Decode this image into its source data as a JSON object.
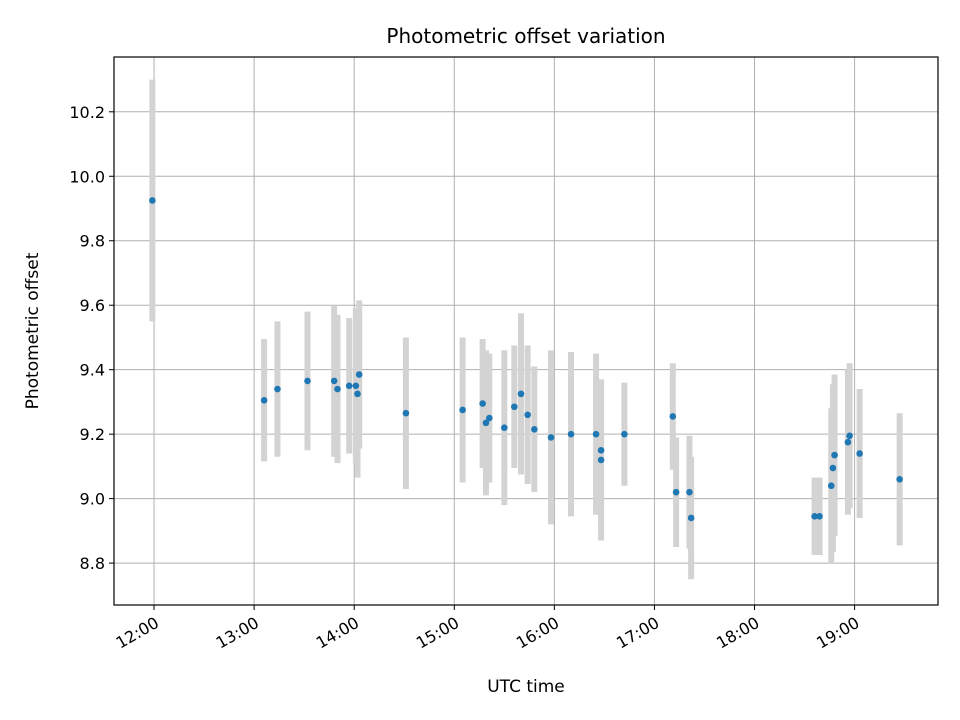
{
  "chart_data": {
    "type": "scatter",
    "title": "Photometric offset variation",
    "xlabel": "UTC time",
    "ylabel": "Photometric offset",
    "xlim": [
      "11:36",
      "19:50"
    ],
    "ylim": [
      8.67,
      10.37
    ],
    "grid": true,
    "x_ticks": [
      "12:00",
      "13:00",
      "14:00",
      "15:00",
      "16:00",
      "17:00",
      "18:00",
      "19:00"
    ],
    "y_ticks": [
      8.8,
      9.0,
      9.2,
      9.4,
      9.6,
      9.8,
      10.0,
      10.2
    ],
    "y_tick_labels": [
      "8.8",
      "9.0",
      "9.2",
      "9.4",
      "9.6",
      "9.8",
      "10.0",
      "10.2"
    ],
    "colors": {
      "point": "#1f77b4",
      "errorbar": "#d3d3d3",
      "grid": "#b0b0b0"
    },
    "points": [
      {
        "x": "11:59",
        "y": 9.925,
        "err": 0.375
      },
      {
        "x": "13:06",
        "y": 9.305,
        "err": 0.19
      },
      {
        "x": "13:14",
        "y": 9.34,
        "err": 0.21
      },
      {
        "x": "13:32",
        "y": 9.365,
        "err": 0.215
      },
      {
        "x": "13:48",
        "y": 9.365,
        "err": 0.235
      },
      {
        "x": "13:50",
        "y": 9.34,
        "err": 0.23
      },
      {
        "x": "13:57",
        "y": 9.35,
        "err": 0.21
      },
      {
        "x": "14:01",
        "y": 9.35,
        "err": 0.24
      },
      {
        "x": "14:03",
        "y": 9.385,
        "err": 0.23
      },
      {
        "x": "14:02",
        "y": 9.325,
        "err": 0.26
      },
      {
        "x": "14:31",
        "y": 9.265,
        "err": 0.235
      },
      {
        "x": "15:05",
        "y": 9.275,
        "err": 0.225
      },
      {
        "x": "15:17",
        "y": 9.295,
        "err": 0.2
      },
      {
        "x": "15:19",
        "y": 9.235,
        "err": 0.225
      },
      {
        "x": "15:21",
        "y": 9.25,
        "err": 0.2
      },
      {
        "x": "15:30",
        "y": 9.22,
        "err": 0.24
      },
      {
        "x": "15:36",
        "y": 9.285,
        "err": 0.19
      },
      {
        "x": "15:40",
        "y": 9.325,
        "err": 0.25
      },
      {
        "x": "15:44",
        "y": 9.26,
        "err": 0.215
      },
      {
        "x": "15:48",
        "y": 9.215,
        "err": 0.195
      },
      {
        "x": "15:58",
        "y": 9.19,
        "err": 0.27
      },
      {
        "x": "16:10",
        "y": 9.2,
        "err": 0.255
      },
      {
        "x": "16:25",
        "y": 9.2,
        "err": 0.25
      },
      {
        "x": "16:28",
        "y": 9.15,
        "err": 0.22
      },
      {
        "x": "16:28",
        "y": 9.12,
        "err": 0.25
      },
      {
        "x": "16:42",
        "y": 9.2,
        "err": 0.16
      },
      {
        "x": "17:11",
        "y": 9.255,
        "err": 0.165
      },
      {
        "x": "17:13",
        "y": 9.02,
        "err": 0.17
      },
      {
        "x": "17:21",
        "y": 9.02,
        "err": 0.175
      },
      {
        "x": "17:22",
        "y": 8.94,
        "err": 0.19
      },
      {
        "x": "18:36",
        "y": 8.945,
        "err": 0.12
      },
      {
        "x": "18:39",
        "y": 8.945,
        "err": 0.12
      },
      {
        "x": "18:46",
        "y": 9.04,
        "err": 0.24
      },
      {
        "x": "18:47",
        "y": 9.095,
        "err": 0.26
      },
      {
        "x": "18:48",
        "y": 9.135,
        "err": 0.25
      },
      {
        "x": "18:56",
        "y": 9.175,
        "err": 0.225
      },
      {
        "x": "18:57",
        "y": 9.195,
        "err": 0.225
      },
      {
        "x": "19:03",
        "y": 9.14,
        "err": 0.2
      },
      {
        "x": "19:27",
        "y": 9.06,
        "err": 0.205
      }
    ]
  }
}
